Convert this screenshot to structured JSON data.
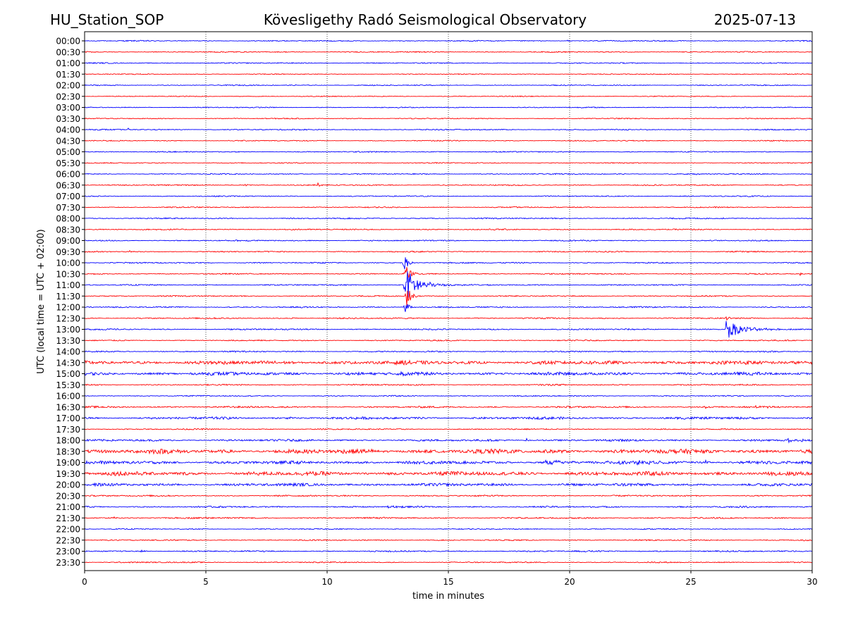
{
  "header": {
    "station": "HU_Station_SOP",
    "title": "Kövesligethy Radó Seismological Observatory",
    "date": "2025-07-13"
  },
  "chart_data": {
    "type": "line",
    "chart_kind": "helicorder",
    "xlabel": "time in minutes",
    "ylabel": "UTC (local time = UTC + 02:00)",
    "xlim": [
      0,
      30
    ],
    "x_ticks": [
      0,
      5,
      10,
      15,
      20,
      25,
      30
    ],
    "x_tick_labels": [
      "0",
      "5",
      "10",
      "15",
      "20",
      "25",
      "30"
    ],
    "vertical_grid": "dotted at 5, 10, 15, 20, 25",
    "trace_colors": [
      "#0000ff",
      "#ff0000"
    ],
    "rows": [
      {
        "label": "00:00",
        "noise": 0.55,
        "events": [
          {
            "t": 19.9,
            "amp": 2.0,
            "decay": 0.12
          }
        ]
      },
      {
        "label": "00:30",
        "noise": 0.55,
        "events": []
      },
      {
        "label": "01:00",
        "noise": 0.55,
        "events": [
          {
            "t": 28.5,
            "amp": 1.0,
            "decay": 0.3
          }
        ]
      },
      {
        "label": "01:30",
        "noise": 0.45,
        "events": []
      },
      {
        "label": "02:00",
        "noise": 0.5,
        "events": [
          {
            "t": 11.9,
            "amp": 1.2,
            "decay": 0.08
          }
        ]
      },
      {
        "label": "02:30",
        "noise": 0.45,
        "events": []
      },
      {
        "label": "03:00",
        "noise": 0.5,
        "events": []
      },
      {
        "label": "03:30",
        "noise": 0.5,
        "events": [
          {
            "t": 26.5,
            "amp": 2.6,
            "decay": 0.06
          }
        ]
      },
      {
        "label": "04:00",
        "noise": 0.55,
        "events": [
          {
            "t": 1.8,
            "amp": 2.6,
            "decay": 0.05
          }
        ]
      },
      {
        "label": "04:30",
        "noise": 0.5,
        "events": []
      },
      {
        "label": "05:00",
        "noise": 0.55,
        "events": []
      },
      {
        "label": "05:30",
        "noise": 0.5,
        "events": []
      },
      {
        "label": "06:00",
        "noise": 0.55,
        "events": [
          {
            "t": 29.8,
            "amp": 2.2,
            "decay": 0.08
          },
          {
            "t": 25.2,
            "amp": 1.5,
            "decay": 0.1
          }
        ]
      },
      {
        "label": "06:30",
        "noise": 0.6,
        "events": [
          {
            "t": 9.6,
            "amp": 3.2,
            "decay": 0.12
          },
          {
            "t": 6.6,
            "amp": 1.6,
            "decay": 0.25
          }
        ]
      },
      {
        "label": "07:00",
        "noise": 0.55,
        "events": []
      },
      {
        "label": "07:30",
        "noise": 0.55,
        "events": []
      },
      {
        "label": "08:00",
        "noise": 0.6,
        "events": [
          {
            "t": 26.3,
            "amp": 1.8,
            "decay": 0.05
          }
        ]
      },
      {
        "label": "08:30",
        "noise": 0.6,
        "events": []
      },
      {
        "label": "09:00",
        "noise": 0.6,
        "events": [
          {
            "t": 6.7,
            "amp": 1.4,
            "decay": 0.08
          }
        ]
      },
      {
        "label": "09:30",
        "noise": 0.6,
        "events": [
          {
            "t": 1.9,
            "amp": 3.6,
            "decay": 0.04
          }
        ]
      },
      {
        "label": "10:00",
        "noise": 0.6,
        "events": [
          {
            "t": 13.15,
            "amp": 15.0,
            "decay": 0.15
          }
        ]
      },
      {
        "label": "10:30",
        "noise": 0.6,
        "events": [
          {
            "t": 13.2,
            "amp": 17.0,
            "decay": 0.2
          },
          {
            "t": 29.5,
            "amp": 2.5,
            "decay": 0.05
          }
        ]
      },
      {
        "label": "11:00",
        "noise": 0.6,
        "events": [
          {
            "t": 13.2,
            "amp": 26.0,
            "decay": 0.55
          }
        ]
      },
      {
        "label": "11:30",
        "noise": 0.6,
        "events": [
          {
            "t": 13.25,
            "amp": 16.0,
            "decay": 0.2
          }
        ]
      },
      {
        "label": "12:00",
        "noise": 0.65,
        "events": [
          {
            "t": 13.2,
            "amp": 13.0,
            "decay": 0.15
          }
        ]
      },
      {
        "label": "12:30",
        "noise": 0.65,
        "events": [
          {
            "t": 8.5,
            "amp": 3.2,
            "decay": 0.1
          },
          {
            "t": 26.45,
            "amp": 5.0,
            "decay": 0.1
          }
        ]
      },
      {
        "label": "13:00",
        "noise": 0.7,
        "events": [
          {
            "t": 26.45,
            "amp": 15.0,
            "decay": 0.6
          }
        ]
      },
      {
        "label": "13:30",
        "noise": 0.6,
        "events": []
      },
      {
        "label": "14:00",
        "noise": 0.65,
        "events": []
      },
      {
        "label": "14:30",
        "noise": 1.9,
        "events": []
      },
      {
        "label": "15:00",
        "noise": 1.6,
        "events": [
          {
            "t": 13.0,
            "amp": 2.6,
            "decay": 0.2
          }
        ]
      },
      {
        "label": "15:30",
        "noise": 0.7,
        "events": []
      },
      {
        "label": "16:00",
        "noise": 0.55,
        "events": []
      },
      {
        "label": "16:30",
        "noise": 0.85,
        "events": [
          {
            "t": 27.6,
            "amp": 2.6,
            "decay": 0.3
          },
          {
            "t": 25.5,
            "amp": 1.6,
            "decay": 0.6
          }
        ]
      },
      {
        "label": "17:00",
        "noise": 1.2,
        "events": [
          {
            "t": 8.4,
            "amp": 2.0,
            "decay": 0.1
          }
        ]
      },
      {
        "label": "17:30",
        "noise": 0.6,
        "events": []
      },
      {
        "label": "18:00",
        "noise": 1.0,
        "events": [
          {
            "t": 18.2,
            "amp": 3.4,
            "decay": 0.1
          },
          {
            "t": 29.0,
            "amp": 2.4,
            "decay": 0.8
          }
        ]
      },
      {
        "label": "18:30",
        "noise": 2.2,
        "events": [
          {
            "t": 11.5,
            "amp": 2.5,
            "decay": 0.3
          }
        ]
      },
      {
        "label": "19:00",
        "noise": 1.6,
        "events": [
          {
            "t": 19.0,
            "amp": 2.8,
            "decay": 0.8
          },
          {
            "t": 22.5,
            "amp": 3.6,
            "decay": 1.2
          },
          {
            "t": 25.6,
            "amp": 3.4,
            "decay": 0.15
          }
        ]
      },
      {
        "label": "19:30",
        "noise": 2.0,
        "events": []
      },
      {
        "label": "20:00",
        "noise": 1.4,
        "events": []
      },
      {
        "label": "20:30",
        "noise": 0.7,
        "events": []
      },
      {
        "label": "21:00",
        "noise": 0.8,
        "events": [
          {
            "t": 12.5,
            "amp": 1.4,
            "decay": 0.4
          }
        ]
      },
      {
        "label": "21:30",
        "noise": 0.75,
        "events": [
          {
            "t": 1.2,
            "amp": 3.6,
            "decay": 0.06
          },
          {
            "t": 5.0,
            "amp": 1.2,
            "decay": 0.2
          }
        ]
      },
      {
        "label": "22:00",
        "noise": 0.5,
        "events": []
      },
      {
        "label": "22:30",
        "noise": 0.6,
        "events": [
          {
            "t": 29.6,
            "amp": 1.6,
            "decay": 0.3
          }
        ]
      },
      {
        "label": "23:00",
        "noise": 0.7,
        "events": [
          {
            "t": 2.3,
            "amp": 2.2,
            "decay": 0.2
          }
        ]
      },
      {
        "label": "23:30",
        "noise": 0.6,
        "events": [
          {
            "t": 26.4,
            "amp": 1.6,
            "decay": 0.15
          },
          {
            "t": 19.0,
            "amp": 1.2,
            "decay": 0.1
          }
        ]
      }
    ]
  }
}
